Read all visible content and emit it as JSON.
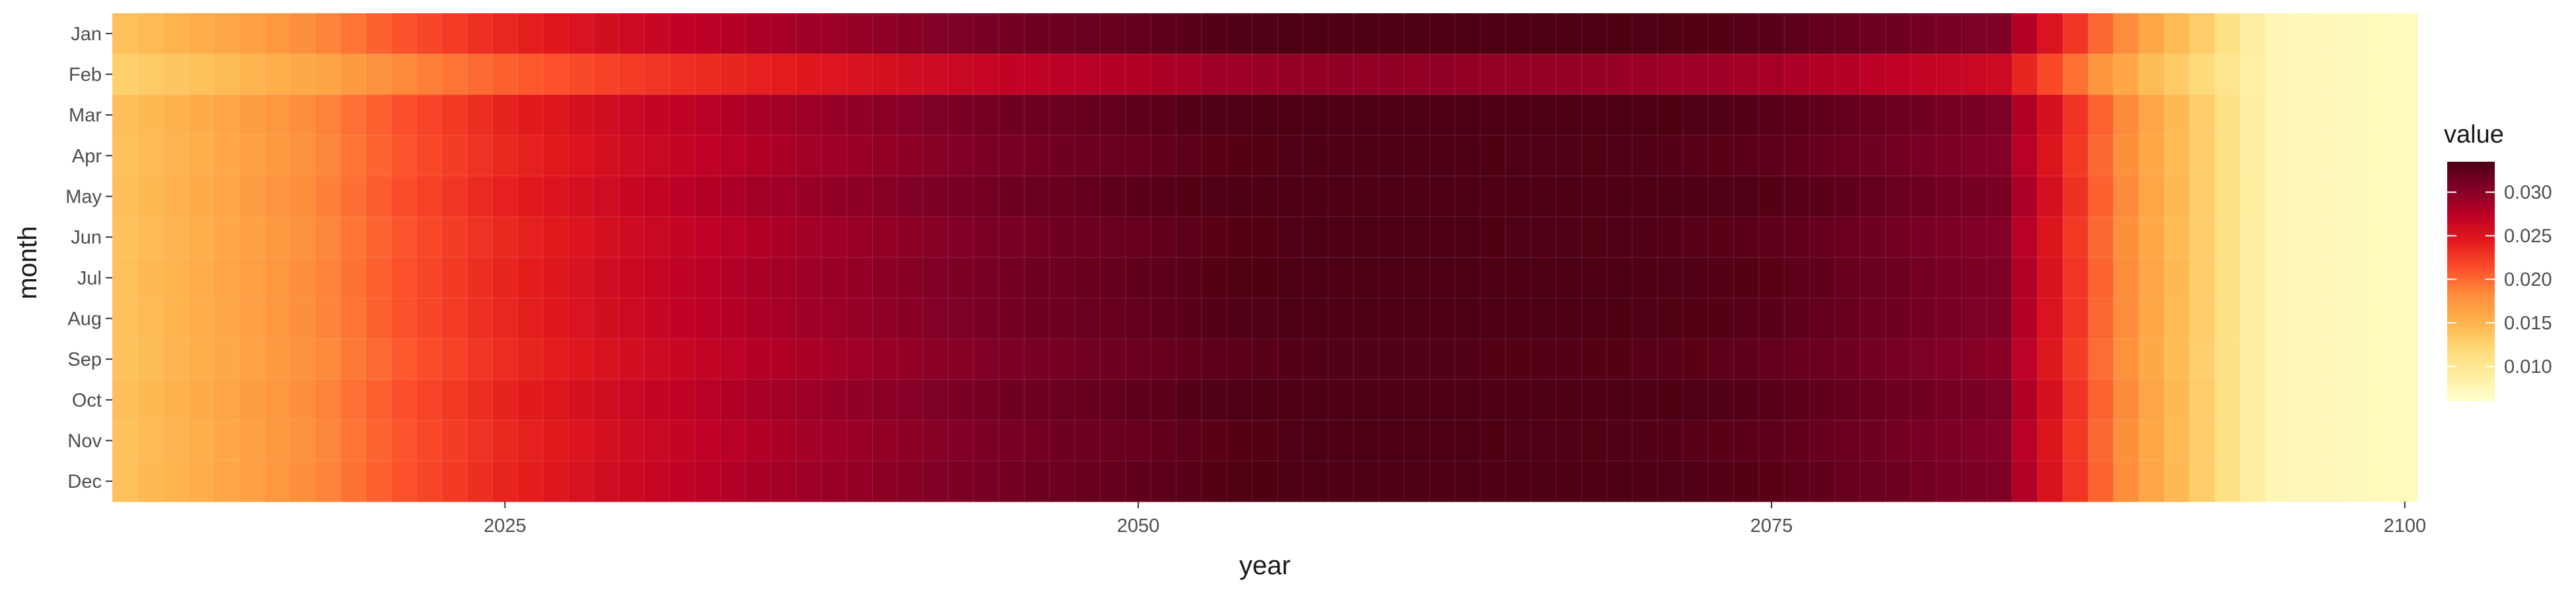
{
  "chart_data": {
    "type": "heatmap",
    "title": "",
    "xlabel": "year",
    "ylabel": "month",
    "x_range": [
      2010,
      2100
    ],
    "x_ticks": [
      2025,
      2050,
      2075,
      2100
    ],
    "months": [
      "Jan",
      "Feb",
      "Mar",
      "Apr",
      "May",
      "Jun",
      "Jul",
      "Aug",
      "Sep",
      "Oct",
      "Nov",
      "Dec"
    ],
    "years_start": 2010,
    "years_end": 2100,
    "grid": true,
    "legend": {
      "title": "value",
      "position": "right",
      "range": [
        0.006,
        0.0335
      ],
      "ticks": [
        "0.010",
        "0.015",
        "0.020",
        "0.025",
        "0.030"
      ],
      "tick_values": [
        0.01,
        0.015,
        0.02,
        0.025,
        0.03
      ],
      "colors": [
        "#ffffcc",
        "#ffeda0",
        "#fed976",
        "#feb24c",
        "#fd8d3c",
        "#fc4e2a",
        "#e31a1c",
        "#bd0026",
        "#800026",
        "#4d0013"
      ]
    },
    "value_profile": {
      "description_years": [
        2010,
        2014,
        2018,
        2021,
        2025,
        2030,
        2035,
        2040,
        2045,
        2050,
        2053,
        2057,
        2063,
        2070,
        2075,
        2080,
        2084,
        2086,
        2088,
        2090,
        2092,
        2093,
        2094,
        2095,
        2100
      ],
      "values": [
        0.014,
        0.016,
        0.0185,
        0.021,
        0.0235,
        0.026,
        0.028,
        0.0295,
        0.031,
        0.032,
        0.0328,
        0.0335,
        0.0335,
        0.0332,
        0.0325,
        0.0312,
        0.0302,
        0.025,
        0.02,
        0.016,
        0.013,
        0.011,
        0.009,
        0.0075,
        0.007
      ]
    },
    "month_adjustments": {
      "Jan": 0.0002,
      "Feb": -0.004,
      "Mar": 0.0004,
      "Apr": 0.0,
      "May": 0.0006,
      "Jun": 0.0,
      "Jul": 0.0003,
      "Aug": 0.0002,
      "Sep": -0.0003,
      "Oct": 0.0004,
      "Nov": 0.0,
      "Dec": 0.0003
    }
  }
}
